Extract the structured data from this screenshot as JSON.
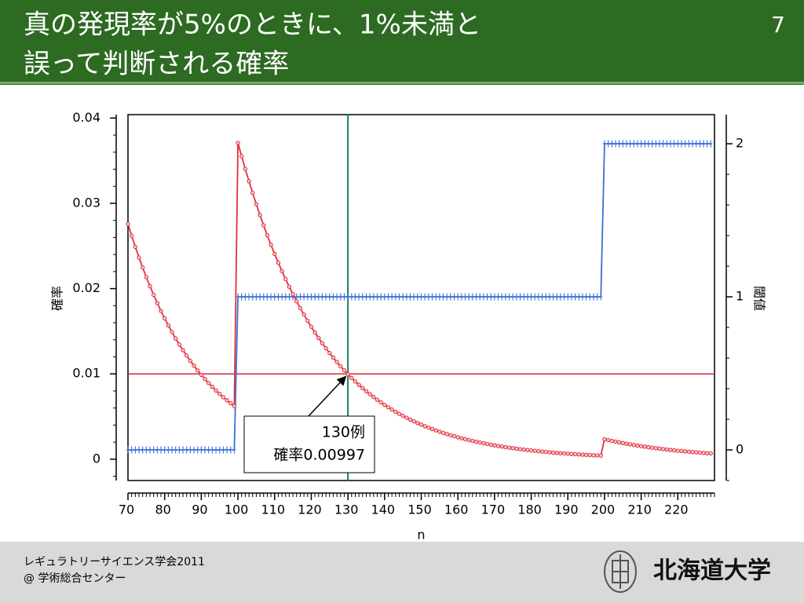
{
  "slide": {
    "title_lines": [
      "真の発現率が5%のときに、1%未満と",
      "誤って判断される確率"
    ],
    "page_number": "7",
    "footer_lines": [
      "レギュラトリーサイエンス学会2011",
      "@ 学術総合センター"
    ],
    "logo": "北海道大学"
  },
  "chart_data": {
    "type": "line",
    "x_label": "n",
    "y_label": "確率",
    "y2_label": "閾値",
    "x": [
      70,
      71,
      72,
      73,
      74,
      75,
      76,
      77,
      78,
      79,
      80,
      81,
      82,
      83,
      84,
      85,
      86,
      87,
      88,
      89,
      90,
      91,
      92,
      93,
      94,
      95,
      96,
      97,
      98,
      99,
      100,
      101,
      102,
      103,
      104,
      105,
      106,
      107,
      108,
      109,
      110,
      111,
      112,
      113,
      114,
      115,
      116,
      117,
      118,
      119,
      120,
      121,
      122,
      123,
      124,
      125,
      126,
      127,
      128,
      129,
      130,
      131,
      132,
      133,
      134,
      135,
      136,
      137,
      138,
      139,
      140,
      141,
      142,
      143,
      144,
      145,
      146,
      147,
      148,
      149,
      150,
      151,
      152,
      153,
      154,
      155,
      156,
      157,
      158,
      159,
      160,
      161,
      162,
      163,
      164,
      165,
      166,
      167,
      168,
      169,
      170,
      171,
      172,
      173,
      174,
      175,
      176,
      177,
      178,
      179,
      180,
      181,
      182,
      183,
      184,
      185,
      186,
      187,
      188,
      189,
      190,
      191,
      192,
      193,
      194,
      195,
      196,
      197,
      198,
      199,
      200,
      201,
      202,
      203,
      204,
      205,
      206,
      207,
      208,
      209,
      210,
      211,
      212,
      213,
      214,
      215,
      216,
      217,
      218,
      219,
      220,
      221,
      222,
      223,
      224,
      225,
      226,
      227,
      228,
      229
    ],
    "series": [
      {
        "color": "#e0303c",
        "marker": "circle",
        "values": [
          0.02758,
          0.0262,
          0.02489,
          0.02365,
          0.02247,
          0.02134,
          0.02028,
          0.01926,
          0.0183,
          0.01738,
          0.01651,
          0.01569,
          0.0149,
          0.01416,
          0.01345,
          0.01278,
          0.01214,
          0.01153,
          0.01096,
          0.01041,
          0.00989,
          0.0094,
          0.00893,
          0.00848,
          0.00806,
          0.00765,
          0.00727,
          0.00691,
          0.00656,
          0.00623,
          0.037081,
          0.035523,
          0.034028,
          0.032594,
          0.031218,
          0.029898,
          0.028632,
          0.027418,
          0.026254,
          0.025138,
          0.024068,
          0.023041,
          0.022058,
          0.021115,
          0.020211,
          0.019345,
          0.018515,
          0.017719,
          0.016957,
          0.016227,
          0.015527,
          0.014857,
          0.014215,
          0.0136,
          0.013011,
          0.012447,
          0.011906,
          0.011389,
          0.010894,
          0.010419,
          0.0099659,
          0.0095311,
          0.0091149,
          0.0087165,
          0.0083352,
          0.0079702,
          0.0076208,
          0.0072865,
          0.0069666,
          0.0066604,
          0.0063673,
          0.006087,
          0.0058188,
          0.0055622,
          0.0053167,
          0.0050818,
          0.0048572,
          0.0046423,
          0.0044367,
          0.0042401,
          0.0040521,
          0.0038723,
          0.0037003,
          0.0035359,
          0.0033786,
          0.0032282,
          0.0030844,
          0.002947,
          0.0028155,
          0.0026898,
          0.0025697,
          0.0024549,
          0.0023451,
          0.0022401,
          0.0021398,
          0.002044,
          0.0019523,
          0.0018647,
          0.001781,
          0.001701,
          0.0016245,
          0.0015515,
          0.0014817,
          0.001415,
          0.0013512,
          0.0012903,
          0.0012321,
          0.0011765,
          0.0011234,
          0.0010726,
          0.0010242,
          0.00097784,
          0.00093359,
          0.00089132,
          0.00085095,
          0.00081238,
          0.00077555,
          0.00074036,
          0.00070676,
          0.00067466,
          0.00064401,
          0.00061474,
          0.00058678,
          0.00056009,
          0.00053459,
          0.00051025,
          0.000487,
          0.0004648,
          0.00044361,
          0.00042337,
          0.0023364,
          0.0022398,
          0.0021471,
          0.0020581,
          0.0019728,
          0.0018909,
          0.0018123,
          0.001737,
          0.0016647,
          0.0015953,
          0.0015289,
          0.001465,
          0.0014039,
          0.0013452,
          0.0012889,
          0.001235,
          0.0011832,
          0.0011336,
          0.001086,
          0.0010404,
          0.00099664,
          0.00095472,
          0.00091452,
          0.00087599,
          0.00083905,
          0.00080364,
          0.0007697,
          0.00073718,
          0.000706,
          0.00067612
        ]
      },
      {
        "color": "#3a6fd8",
        "marker": "plus",
        "axis": "y2",
        "values": [
          0,
          0,
          0,
          0,
          0,
          0,
          0,
          0,
          0,
          0,
          0,
          0,
          0,
          0,
          0,
          0,
          0,
          0,
          0,
          0,
          0,
          0,
          0,
          0,
          0,
          0,
          0,
          0,
          0,
          0,
          1,
          1,
          1,
          1,
          1,
          1,
          1,
          1,
          1,
          1,
          1,
          1,
          1,
          1,
          1,
          1,
          1,
          1,
          1,
          1,
          1,
          1,
          1,
          1,
          1,
          1,
          1,
          1,
          1,
          1,
          1,
          1,
          1,
          1,
          1,
          1,
          1,
          1,
          1,
          1,
          1,
          1,
          1,
          1,
          1,
          1,
          1,
          1,
          1,
          1,
          1,
          1,
          1,
          1,
          1,
          1,
          1,
          1,
          1,
          1,
          1,
          1,
          1,
          1,
          1,
          1,
          1,
          1,
          1,
          1,
          1,
          1,
          1,
          1,
          1,
          1,
          1,
          1,
          1,
          1,
          1,
          1,
          1,
          1,
          1,
          1,
          1,
          1,
          1,
          1,
          1,
          1,
          1,
          1,
          1,
          1,
          1,
          1,
          1,
          1,
          2,
          2,
          2,
          2,
          2,
          2,
          2,
          2,
          2,
          2,
          2,
          2,
          2,
          2,
          2,
          2,
          2,
          2,
          2,
          2,
          2,
          2,
          2,
          2,
          2,
          2,
          2,
          2,
          2,
          2
        ]
      }
    ],
    "xlim": [
      70,
      230
    ],
    "xticks": [
      70,
      80,
      90,
      100,
      110,
      120,
      130,
      140,
      150,
      160,
      170,
      180,
      190,
      200,
      210,
      220
    ],
    "x_minor_step": 1,
    "ylim": [
      -0.0025,
      0.0404
    ],
    "yticks": [
      0,
      0.01,
      0.02,
      0.03,
      0.04
    ],
    "y_minor_step": 0.002,
    "y2lim": [
      -0.2,
      2.19
    ],
    "y2ticks": [
      0,
      1,
      2
    ],
    "y2_minor_step": 0.2,
    "hlines": [
      {
        "y": 0.01,
        "color": "#d42a35"
      }
    ],
    "vlines": [
      {
        "x": 130,
        "color": "#1a8060"
      }
    ],
    "annotation": {
      "lines": [
        "130例",
        "確率0.00997"
      ],
      "x": 130,
      "y": 0.00997
    }
  }
}
